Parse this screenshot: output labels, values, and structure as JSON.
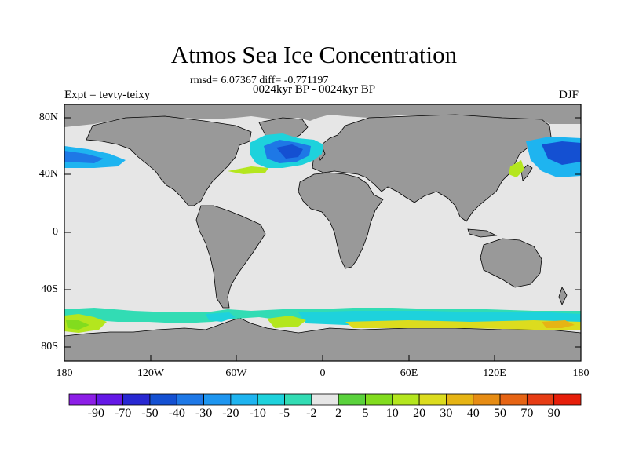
{
  "title": "Atmos Sea Ice Concentration",
  "stats": "rmsd= 6.07367  diff= -0.771197",
  "subtitle": "0024kyr BP - 0024kyr BP",
  "left_label": "Expt = tevty-teixy",
  "right_label": "DJF",
  "y_ticks": [
    "80N",
    "40N",
    "0",
    "40S",
    "80S"
  ],
  "x_ticks": [
    "180",
    "120W",
    "60W",
    "0",
    "60E",
    "120E",
    "180"
  ],
  "colorbar": {
    "labels": [
      "-90",
      "-70",
      "-50",
      "-40",
      "-30",
      "-20",
      "-10",
      "-5",
      "-2",
      "2",
      "5",
      "10",
      "20",
      "30",
      "40",
      "50",
      "70",
      "90"
    ],
    "colors": [
      "#8c1ee6",
      "#6418e6",
      "#2828d2",
      "#1450d2",
      "#1e78e6",
      "#1e96f0",
      "#1eb4f0",
      "#1ed2dc",
      "#32dcb4",
      "#e6e6e6",
      "#5ad23c",
      "#82dc1e",
      "#b4e61e",
      "#dcdc1e",
      "#e6b414",
      "#e68c14",
      "#e66414",
      "#e63c14",
      "#e61e0a"
    ]
  },
  "colors": {
    "ocean_background": "#e6e6e6",
    "land": "#999999",
    "coastline": "#000000"
  }
}
